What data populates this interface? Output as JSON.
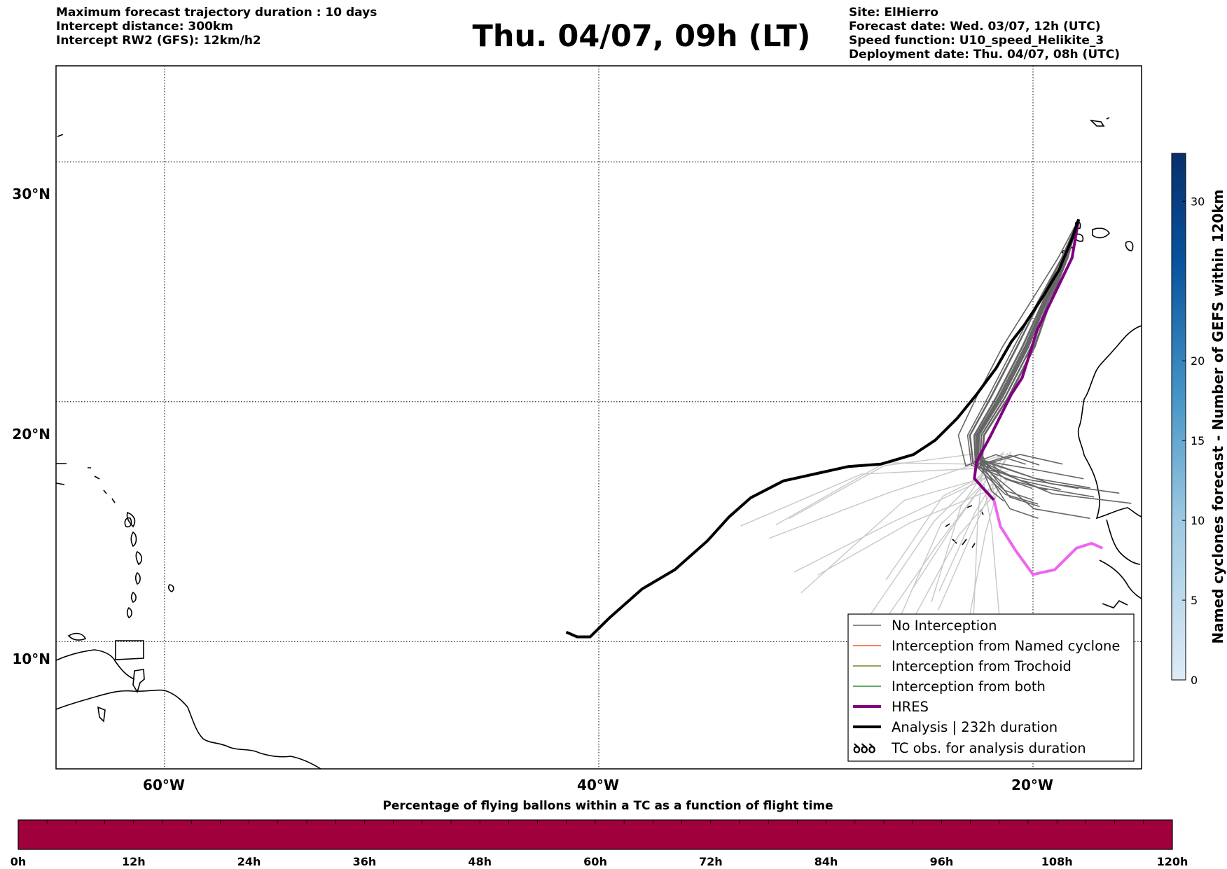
{
  "header": {
    "left": [
      "Maximum forecast trajectory duration : 10 days",
      "Intercept distance: 300km",
      "Intercept RW2 (GFS):  12km/h2"
    ],
    "right": [
      "Site: ElHierro",
      "Forecast date: Wed. 03/07, 12h (UTC)",
      "Speed function: U10_speed_Helikite_3",
      "Deployment date: Thu. 04/07, 08h (UTC)"
    ],
    "title": "Thu. 04/07, 09h (LT)"
  },
  "map": {
    "lat_range": [
      4.7,
      34.0
    ],
    "lon_range": [
      -65.0,
      -15.0
    ],
    "grid": true,
    "lat_labels": [
      "30°N",
      "20°N",
      "10°N"
    ],
    "lat_values": [
      30,
      20,
      10
    ],
    "lon_labels": [
      "60°W",
      "40°W",
      "20°W"
    ],
    "lon_values": [
      -60,
      -40,
      -20
    ],
    "colors": {
      "no_interception": "#666666",
      "named_cyclone": "#f05a28",
      "trochoid": "#808020",
      "both": "#2e8b2e",
      "hres": "#800080",
      "hres_light": "#ee66ee",
      "analysis": "#000000",
      "ensemble_light": "#c8c8c8"
    },
    "analysis_track": [
      [
        -17.9,
        27.6
      ],
      [
        -18.2,
        26.8
      ],
      [
        -18.8,
        25.5
      ],
      [
        -19.6,
        24.3
      ],
      [
        -20.4,
        23.2
      ],
      [
        -21.0,
        22.5
      ],
      [
        -21.7,
        21.4
      ],
      [
        -22.6,
        20.3
      ],
      [
        -23.5,
        19.3
      ],
      [
        -24.5,
        18.4
      ],
      [
        -25.5,
        17.8
      ],
      [
        -27.0,
        17.4
      ],
      [
        -28.5,
        17.3
      ],
      [
        -30.0,
        17.0
      ],
      [
        -31.5,
        16.7
      ],
      [
        -33.0,
        16.0
      ],
      [
        -34.0,
        15.2
      ],
      [
        -35.0,
        14.2
      ],
      [
        -36.5,
        13.0
      ],
      [
        -38.0,
        12.2
      ],
      [
        -39.5,
        11.0
      ],
      [
        -40.4,
        10.2
      ],
      [
        -41.0,
        10.2
      ],
      [
        -41.5,
        10.4
      ]
    ],
    "hres_track": [
      [
        -17.9,
        27.6
      ],
      [
        -18.2,
        26.0
      ],
      [
        -19.0,
        24.5
      ],
      [
        -19.8,
        23.0
      ],
      [
        -20.5,
        21.0
      ],
      [
        -21.0,
        20.3
      ],
      [
        -22.0,
        18.5
      ],
      [
        -22.6,
        17.5
      ],
      [
        -22.7,
        16.8
      ],
      [
        -22.3,
        16.4
      ],
      [
        -21.8,
        15.9
      ]
    ],
    "hres_light_track": [
      [
        -21.8,
        15.9
      ],
      [
        -21.5,
        14.8
      ],
      [
        -20.8,
        13.8
      ],
      [
        -20.0,
        12.8
      ],
      [
        -19.0,
        13.0
      ],
      [
        -18.0,
        13.9
      ],
      [
        -17.3,
        14.1
      ],
      [
        -16.8,
        13.9
      ]
    ],
    "ensemble_count": 20,
    "ensemble_light_count": 20
  },
  "legend": {
    "items": [
      {
        "label": "No Interception",
        "style": "no_interception"
      },
      {
        "label": "Interception from Named cyclone",
        "style": "named_cyclone"
      },
      {
        "label": "Interception from Trochoid",
        "style": "trochoid"
      },
      {
        "label": "Interception from both",
        "style": "both"
      },
      {
        "label": "HRES",
        "style": "hres"
      },
      {
        "label": "Analysis | 232h duration",
        "style": "analysis"
      },
      {
        "label": "TC obs. for analysis duration",
        "style": "tc_obs"
      }
    ],
    "placement": "lower-right"
  },
  "colorbar_right": {
    "label": "Named cyclones forecast - Number of GEFS within 120km",
    "range": [
      0,
      33
    ],
    "ticks": [
      "0",
      "5",
      "10",
      "15",
      "20",
      "30"
    ],
    "tick_values": [
      0,
      5,
      10,
      15,
      20,
      30
    ],
    "colormap": "Blues"
  },
  "bottom_bar": {
    "title": "Percentage of flying ballons within a TC as a function of flight time",
    "color": "#a0003c",
    "ticks": [
      "0h",
      "12h",
      "24h",
      "36h",
      "48h",
      "60h",
      "72h",
      "84h",
      "96h",
      "108h",
      "120h"
    ],
    "tick_values": [
      0,
      12,
      24,
      36,
      48,
      60,
      72,
      84,
      96,
      108,
      120
    ]
  }
}
